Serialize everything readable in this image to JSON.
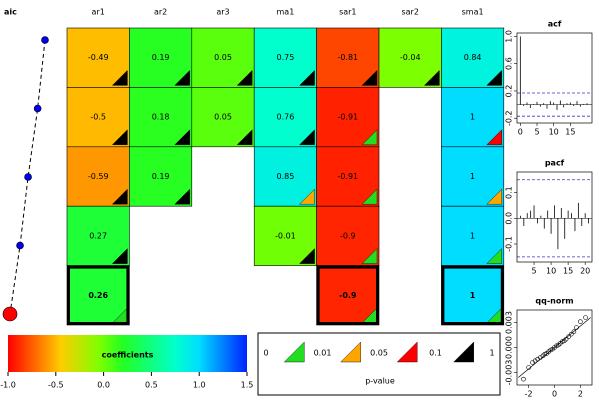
{
  "chart_data": [
    {
      "type": "aic",
      "title": "aic",
      "values": [
        -1760.2,
        -1763.5,
        -1767.8,
        -1771.4,
        -1775.9
      ],
      "highlight": 4
    },
    {
      "type": "tiles",
      "columns": [
        "ar1",
        "ar2",
        "ar3",
        "ma1",
        "sar1",
        "sar2",
        "sma1"
      ],
      "rows": [
        [
          -0.49,
          0.19,
          0.05,
          0.75,
          -0.81,
          -0.04,
          0.84
        ],
        [
          -0.5,
          0.18,
          0.05,
          0.76,
          -0.91,
          null,
          1
        ],
        [
          -0.59,
          0.19,
          null,
          0.85,
          -0.91,
          null,
          1
        ],
        [
          0.27,
          null,
          null,
          -0.01,
          -0.9,
          null,
          1
        ],
        [
          0.26,
          null,
          null,
          null,
          -0.9,
          null,
          1
        ]
      ],
      "triangles": [
        [
          "#000000",
          "#000000",
          "#000000",
          "#000000",
          "#000000",
          "#000000",
          "#000000"
        ],
        [
          "#000000",
          "#000000",
          "#000000",
          "#000000",
          "#22dd22",
          null,
          "#ff0000"
        ],
        [
          "#000000",
          "#000000",
          null,
          "#ffa500",
          "#22dd22",
          null,
          "#ffa500"
        ],
        [
          "#000000",
          null,
          null,
          "#000000",
          "#22dd22",
          null,
          "#22dd22"
        ],
        [
          "#22dd22",
          null,
          null,
          null,
          "#22dd22",
          null,
          "#22dd22"
        ]
      ],
      "highlight_row": 4
    },
    {
      "type": "colorbar",
      "title": "coefficients",
      "xlim": [
        -1,
        1.5
      ],
      "xticks": [
        {
          "value": -1,
          "label": "-1.0"
        },
        {
          "value": -0.5,
          "label": "-0.5"
        },
        {
          "value": 0,
          "label": "0.0"
        },
        {
          "value": 0.5,
          "label": "0.5"
        },
        {
          "value": 1,
          "label": "1.0"
        },
        {
          "value": 1.5,
          "label": "1.5"
        }
      ],
      "colorscale": [
        [
          -1,
          "#ff0000"
        ],
        [
          -0.45,
          "#ffcc00"
        ],
        [
          -0.05,
          "#80ff00"
        ],
        [
          0.2,
          "#22ff22"
        ],
        [
          0.75,
          "#00ffcc"
        ],
        [
          1,
          "#00ddff"
        ],
        [
          1.5,
          "#0022ff"
        ]
      ]
    },
    {
      "type": "legend",
      "title": "p-value",
      "labels": [
        0,
        0.01,
        0.05,
        0.1,
        1
      ],
      "colors": [
        "#22dd22",
        "#ffa500",
        "#ff0000",
        "#000000"
      ]
    },
    {
      "type": "acf",
      "title": "acf",
      "x": [
        0,
        1,
        2,
        3,
        4,
        5,
        6,
        7,
        8,
        9,
        10,
        11,
        12,
        13,
        14,
        15,
        16,
        17,
        18,
        19,
        20
      ],
      "values": [
        1,
        -0.02,
        0.03,
        -0.05,
        0.01,
        0.04,
        -0.03,
        0.02,
        -0.06,
        0.05,
        0.03,
        -0.08,
        0.06,
        -0.04,
        0.02,
        0.03,
        -0.02,
        0.05,
        -0.03,
        0.01,
        0.02
      ],
      "ci": 0.17,
      "xlim": [
        -1,
        21.5
      ],
      "ylim": [
        -0.27,
        1.05
      ],
      "xticks": [
        0,
        5,
        10,
        15
      ],
      "yticks": [
        {
          "value": -0.2,
          "label": "-0.2"
        },
        {
          "value": 0.2,
          "label": "0.2"
        },
        {
          "value": 0.6,
          "label": "0.6"
        },
        {
          "value": 1,
          "label": "1.0"
        }
      ]
    },
    {
      "type": "acf",
      "title": "pacf",
      "x": [
        1,
        2,
        3,
        4,
        5,
        6,
        7,
        8,
        9,
        10,
        11,
        12,
        13,
        14,
        15,
        16,
        17,
        18,
        19,
        20,
        21
      ],
      "values": [
        0.01,
        -0.03,
        0.02,
        0.03,
        0.05,
        -0.02,
        0.01,
        -0.04,
        0.03,
        -0.06,
        0.05,
        -0.12,
        0.04,
        -0.08,
        0.03,
        0.02,
        -0.05,
        0.06,
        -0.03,
        0.02,
        -0.02
      ],
      "ci": 0.15,
      "xlim": [
        0,
        22
      ],
      "ylim": [
        -0.17,
        0.18
      ],
      "xticks": [
        5,
        10,
        15,
        20
      ],
      "yticks": [
        {
          "value": -0.1,
          "label": "-0.1"
        },
        {
          "value": 0,
          "label": "0.0"
        },
        {
          "value": 0.1,
          "label": "0.1"
        }
      ]
    },
    {
      "type": "qq",
      "title": "qq-norm",
      "x": [
        -2.4,
        -2.0,
        -1.7,
        -1.5,
        -1.3,
        -1.1,
        -0.9,
        -0.75,
        -0.6,
        -0.45,
        -0.3,
        -0.15,
        0,
        0.15,
        0.3,
        0.45,
        0.6,
        0.75,
        0.9,
        1.1,
        1.3,
        1.5,
        1.7,
        2.0,
        2.4
      ],
      "values": [
        -0.0038,
        -0.0024,
        -0.0018,
        -0.0016,
        -0.0014,
        -0.0012,
        -0.001,
        -0.0008,
        -0.0007,
        -0.0005,
        -0.0003,
        -0.0002,
        0,
        0.0002,
        0.0003,
        0.0005,
        0.0007,
        0.0008,
        0.001,
        0.0013,
        0.0016,
        0.0019,
        0.0024,
        0.0031,
        0.0036
      ],
      "line_x": [
        -2.8,
        2.8
      ],
      "line_y": [
        -0.0036,
        0.0036
      ],
      "xlim": [
        -2.9,
        2.9
      ],
      "ylim": [
        -0.0045,
        0.0045
      ],
      "xticks": [
        -2,
        0,
        2
      ],
      "yticks": [
        -0.003,
        {
          "value": 0,
          "label": "0.000"
        },
        0.003
      ]
    }
  ]
}
